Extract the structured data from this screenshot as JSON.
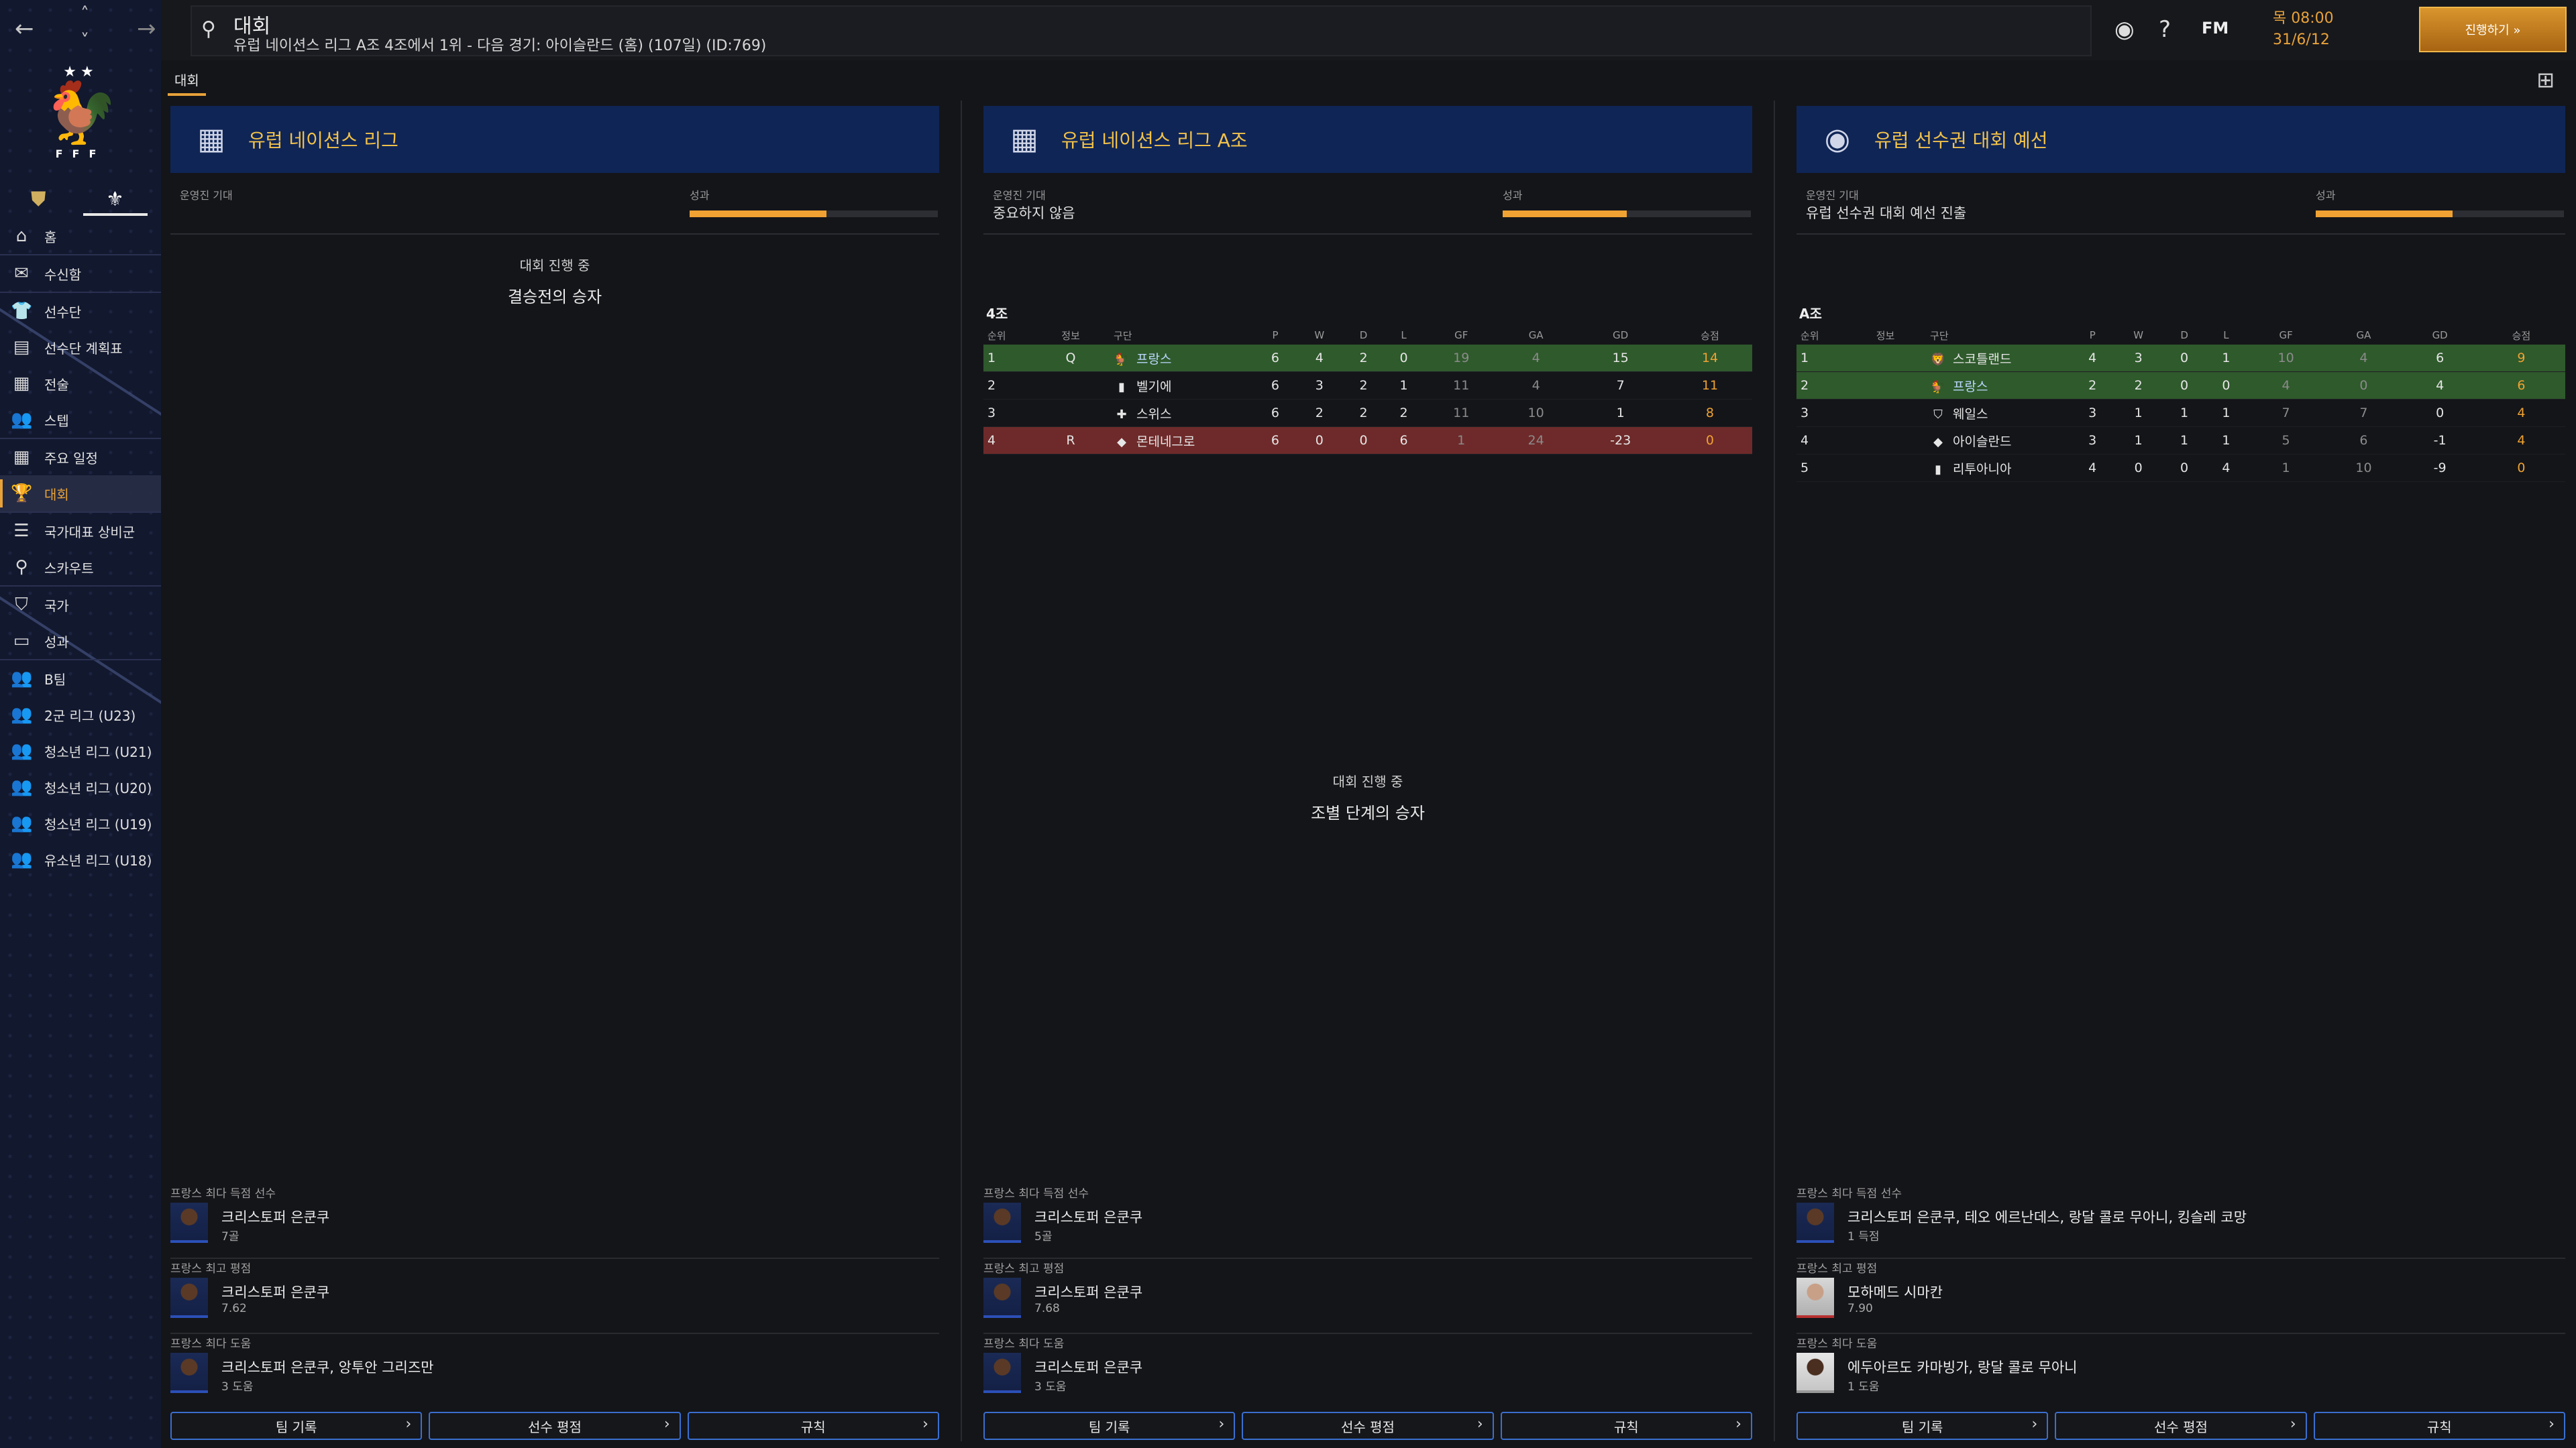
{
  "sidebar": {
    "nav": {
      "back": "←",
      "up": "˄",
      "down": "˅",
      "forward": "→"
    },
    "crest": {
      "stars": "★★",
      "letters": "FFF"
    },
    "items": [
      {
        "label": "홈",
        "icon": "home-icon",
        "glyph": "⌂"
      },
      {
        "label": "수신함",
        "icon": "inbox-icon",
        "glyph": "✉"
      },
      {
        "label": "선수단",
        "icon": "shirt-icon",
        "glyph": "👕"
      },
      {
        "label": "선수단 계획표",
        "icon": "clipboard-icon",
        "glyph": "▤"
      },
      {
        "label": "전술",
        "icon": "tactics-icon",
        "glyph": "▦"
      },
      {
        "label": "스텝",
        "icon": "staff-icon",
        "glyph": "👥"
      },
      {
        "label": "주요 일정",
        "icon": "calendar-icon",
        "glyph": "▦"
      },
      {
        "label": "대회",
        "icon": "trophy-icon",
        "glyph": "🏆"
      },
      {
        "label": "국가대표 상비군",
        "icon": "list-icon",
        "glyph": "☰"
      },
      {
        "label": "스카우트",
        "icon": "search-icon",
        "glyph": "⚲"
      },
      {
        "label": "국가",
        "icon": "shield-icon",
        "glyph": "⛉"
      },
      {
        "label": "성과",
        "icon": "folder-icon",
        "glyph": "▭"
      },
      {
        "label": "B팀",
        "icon": "team-icon",
        "glyph": "👥"
      },
      {
        "label": "2군 리그 (U23)",
        "icon": "team-icon",
        "glyph": "👥"
      },
      {
        "label": "청소년 리그 (U21)",
        "icon": "team-icon",
        "glyph": "👥"
      },
      {
        "label": "청소년 리그 (U20)",
        "icon": "team-icon",
        "glyph": "👥"
      },
      {
        "label": "청소년 리그 (U19)",
        "icon": "team-icon",
        "glyph": "👥"
      },
      {
        "label": "유소년 리그 (U18)",
        "icon": "team-icon",
        "glyph": "👥"
      }
    ]
  },
  "topbar": {
    "title": "대회",
    "subtitle": "유럽 네이션스 리그 A조 4조에서 1위 - 다음 경기: 아이슬란드 (홈) (107일) (ID:769)",
    "fm": "FM",
    "time": "목 08:00",
    "date": "31/6/12",
    "continue": "진행하기 »"
  },
  "main": {
    "tab": "대회",
    "columns": [
      {
        "competition": "유럽 네이션스 리그",
        "expect_label": "운영진 기대",
        "expect_value": "",
        "perf_label": "성과",
        "perf_fraction": 0.55,
        "status": "대회 진행 중",
        "status_detail": "결승전의 승자",
        "scorer_label": "프랑스 최다 득점 선수",
        "scorer_name": "크리스토퍼 은쿤쿠",
        "scorer_value": "7골",
        "rating_label": "프랑스 최고 평점",
        "rating_name": "크리스토퍼 은쿤쿠",
        "rating_value": "7.62",
        "assist_label": "프랑스 최다 도움",
        "assist_name": "크리스토퍼 은쿤쿠, 앙투안 그리즈만",
        "assist_value": "3 도움",
        "buttons": [
          "팀 기록",
          "선수 평점",
          "규칙"
        ]
      },
      {
        "competition": "유럽 네이션스 리그 A조",
        "expect_label": "운영진 기대",
        "expect_value": "중요하지 않음",
        "perf_label": "성과",
        "perf_fraction": 0.5,
        "group": "4조",
        "headers": [
          "순위",
          "정보",
          "구단",
          "P",
          "W",
          "D",
          "L",
          "GF",
          "GA",
          "GD",
          "승점"
        ],
        "rows": [
          {
            "pos": "1",
            "info": "Q",
            "team": "프랑스",
            "flag": "🐓",
            "p": "6",
            "w": "4",
            "d": "2",
            "l": "0",
            "gf": "19",
            "ga": "4",
            "gd": "15",
            "pts": "14",
            "state": "q",
            "hl": true
          },
          {
            "pos": "2",
            "info": "",
            "team": "벨기에",
            "flag": "▮",
            "p": "6",
            "w": "3",
            "d": "2",
            "l": "1",
            "gf": "11",
            "ga": "4",
            "gd": "7",
            "pts": "11",
            "state": "",
            "hl": false
          },
          {
            "pos": "3",
            "info": "",
            "team": "스위스",
            "flag": "✚",
            "p": "6",
            "w": "2",
            "d": "2",
            "l": "2",
            "gf": "11",
            "ga": "10",
            "gd": "1",
            "pts": "8",
            "state": "",
            "hl": false
          },
          {
            "pos": "4",
            "info": "R",
            "team": "몬테네그로",
            "flag": "◆",
            "p": "6",
            "w": "0",
            "d": "0",
            "l": "6",
            "gf": "1",
            "ga": "24",
            "gd": "-23",
            "pts": "0",
            "state": "r",
            "hl": false
          }
        ],
        "status": "대회 진행 중",
        "status_detail": "조별 단계의 승자",
        "scorer_label": "프랑스 최다 득점 선수",
        "scorer_name": "크리스토퍼 은쿤쿠",
        "scorer_value": "5골",
        "rating_label": "프랑스 최고 평점",
        "rating_name": "크리스토퍼 은쿤쿠",
        "rating_value": "7.68",
        "assist_label": "프랑스 최다 도움",
        "assist_name": "크리스토퍼 은쿤쿠",
        "assist_value": "3 도움",
        "buttons": [
          "팀 기록",
          "선수 평점",
          "규칙"
        ]
      },
      {
        "competition": "유럽 선수권 대회 예선",
        "expect_label": "운영진 기대",
        "expect_value": "유럽 선수권 대회 예선 진출",
        "perf_label": "성과",
        "perf_fraction": 0.55,
        "group": "A조",
        "headers": [
          "순위",
          "정보",
          "구단",
          "P",
          "W",
          "D",
          "L",
          "GF",
          "GA",
          "GD",
          "승점"
        ],
        "rows": [
          {
            "pos": "1",
            "info": "",
            "team": "스코틀랜드",
            "flag": "🦁",
            "p": "4",
            "w": "3",
            "d": "0",
            "l": "1",
            "gf": "10",
            "ga": "4",
            "gd": "6",
            "pts": "9",
            "state": "q",
            "hl": false
          },
          {
            "pos": "2",
            "info": "",
            "team": "프랑스",
            "flag": "🐓",
            "p": "2",
            "w": "2",
            "d": "0",
            "l": "0",
            "gf": "4",
            "ga": "0",
            "gd": "4",
            "pts": "6",
            "state": "q",
            "hl": true
          },
          {
            "pos": "3",
            "info": "",
            "team": "웨일스",
            "flag": "⛉",
            "p": "3",
            "w": "1",
            "d": "1",
            "l": "1",
            "gf": "7",
            "ga": "7",
            "gd": "0",
            "pts": "4",
            "state": "",
            "hl": false
          },
          {
            "pos": "4",
            "info": "",
            "team": "아이슬란드",
            "flag": "◆",
            "p": "3",
            "w": "1",
            "d": "1",
            "l": "1",
            "gf": "5",
            "ga": "6",
            "gd": "-1",
            "pts": "4",
            "state": "",
            "hl": false
          },
          {
            "pos": "5",
            "info": "",
            "team": "리투아니아",
            "flag": "▮",
            "p": "4",
            "w": "0",
            "d": "0",
            "l": "4",
            "gf": "1",
            "ga": "10",
            "gd": "-9",
            "pts": "0",
            "state": "",
            "hl": false
          }
        ],
        "scorer_label": "프랑스 최다 득점 선수",
        "scorer_name": "크리스토퍼 은쿤쿠, 테오 에르난데스, 랑달 콜로 무아니, 킹슬레 코망",
        "scorer_value": "1 득점",
        "rating_label": "프랑스 최고 평점",
        "rating_name": "모하메드 시마칸",
        "rating_value": "7.90",
        "assist_label": "프랑스 최다 도움",
        "assist_name": "에두아르도 카마빙가, 랑달 콜로 무아니",
        "assist_value": "1 도움",
        "buttons": [
          "팀 기록",
          "선수 평점",
          "규칙"
        ]
      }
    ]
  },
  "colors": {
    "accent": "#e8a23a",
    "header_bg": "#0f2556",
    "qualify": "#2f5a2c",
    "relegate": "#6e2a2a",
    "link_border": "#3a6fd0"
  }
}
